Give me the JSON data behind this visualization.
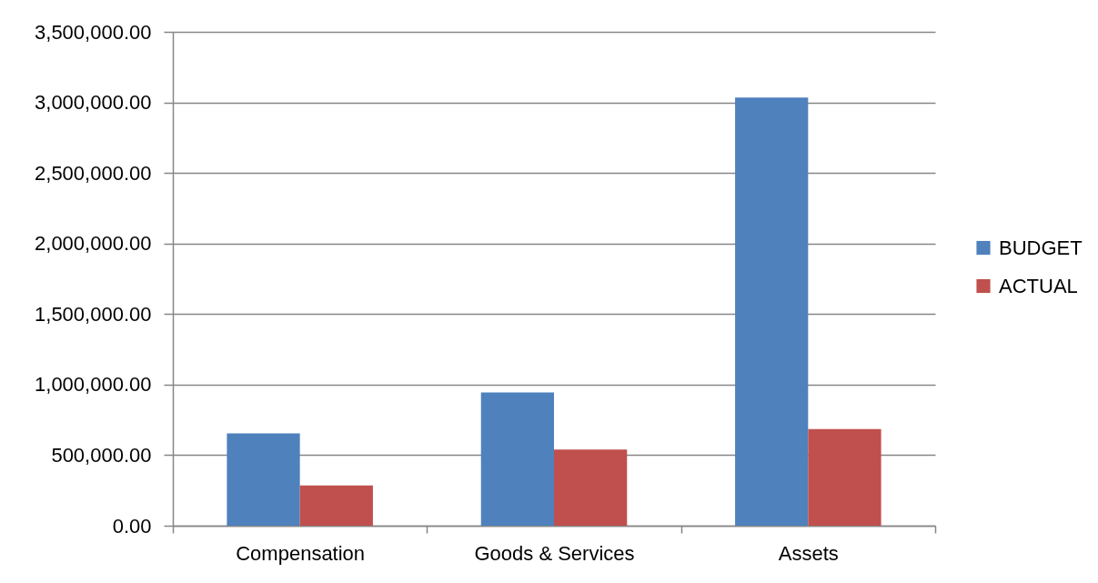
{
  "chart_data": {
    "type": "bar",
    "categories": [
      "Compensation",
      "Goods & Services",
      "Assets"
    ],
    "series": [
      {
        "name": "BUDGET",
        "color": "#4f81bd",
        "values": [
          655000,
          945000,
          3035000
        ]
      },
      {
        "name": "ACTUAL",
        "color": "#c0504d",
        "values": [
          285000,
          540000,
          685000
        ]
      }
    ],
    "ylim": [
      0,
      3500000
    ],
    "yticks": [
      {
        "value": 0,
        "label": "0.00"
      },
      {
        "value": 500000,
        "label": "500,000.00"
      },
      {
        "value": 1000000,
        "label": "1,000,000.00"
      },
      {
        "value": 1500000,
        "label": "1,500,000.00"
      },
      {
        "value": 2000000,
        "label": "2,000,000.00"
      },
      {
        "value": 2500000,
        "label": "2,500,000.00"
      },
      {
        "value": 3000000,
        "label": "3,000,000.00"
      },
      {
        "value": 3500000,
        "label": "3,500,000.00"
      }
    ],
    "grid": "y",
    "legend": "right"
  }
}
